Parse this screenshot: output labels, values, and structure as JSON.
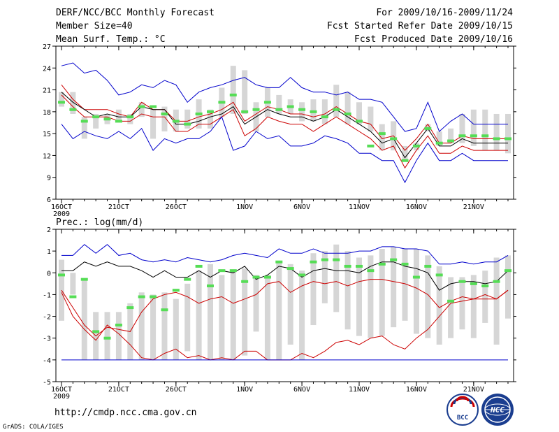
{
  "header": {
    "title_line1": "DERF/NCC/BCC Monthly Forecast",
    "title_line2": "Member Size=40",
    "title_line3": "Mean Surf. Temp.: °C",
    "right_line1": "For 2009/10/16-2009/11/24",
    "right_line2": "Fcst Started Refer Date 2009/10/15",
    "right_line3": "Fcst Produced Date 2009/10/16"
  },
  "footer": {
    "url": "http://cmdp.ncc.cma.gov.cn",
    "credit": "GrADS: COLA/IGES",
    "logo1_text": "BCC",
    "logo2_text": "NCC"
  },
  "colors": {
    "ensemble_range": "#0000cc",
    "ensemble_mean": "#000000",
    "spread": "#cc0000",
    "observation": "#55dd55",
    "box": "#d6d6d6"
  },
  "chart_data": [
    {
      "type": "line",
      "title": "Mean Surf. Temp.: °C",
      "ylim": [
        6,
        27
      ],
      "yticks": [
        6,
        9,
        12,
        15,
        18,
        21,
        24,
        27
      ],
      "x": [
        1,
        2,
        3,
        4,
        5,
        6,
        7,
        8,
        9,
        10,
        11,
        12,
        13,
        14,
        15,
        16,
        17,
        18,
        19,
        20,
        21,
        22,
        23,
        24,
        25,
        26,
        27,
        28,
        29,
        30,
        31,
        32,
        33,
        34,
        35,
        36,
        37,
        38,
        39,
        40
      ],
      "xticks": [
        {
          "x": 1,
          "label": "16OCT",
          "sub": "2009"
        },
        {
          "x": 6,
          "label": "21OCT"
        },
        {
          "x": 11,
          "label": "26OCT"
        },
        {
          "x": 17,
          "label": "1NOV"
        },
        {
          "x": 22,
          "label": "6NOV"
        },
        {
          "x": 27,
          "label": "11NOV"
        },
        {
          "x": 32,
          "label": "16NOV"
        },
        {
          "x": 37,
          "label": "21NOV"
        }
      ],
      "series": [
        {
          "name": "ensemble max",
          "style": "blue",
          "values": [
            24.3,
            24.7,
            23.3,
            23.7,
            22.3,
            20.3,
            20.7,
            21.7,
            21.3,
            22.3,
            21.7,
            19.3,
            20.7,
            21.3,
            21.7,
            22.3,
            22.7,
            21.7,
            21.3,
            21.3,
            22.7,
            21.3,
            20.7,
            20.7,
            20.3,
            20.7,
            19.7,
            19.7,
            19.3,
            17.3,
            15.3,
            15.7,
            19.3,
            15.3,
            16.7,
            17.7,
            16.3,
            16.3,
            16.3,
            16.3
          ]
        },
        {
          "name": "upper spread",
          "style": "red",
          "values": [
            21.7,
            19.7,
            18.3,
            18.3,
            18.3,
            17.7,
            17.3,
            19.3,
            18.3,
            18.3,
            16.7,
            16.7,
            17.3,
            17.7,
            18.3,
            19.3,
            16.7,
            17.7,
            18.7,
            18.3,
            17.7,
            17.7,
            17.3,
            17.7,
            18.7,
            17.7,
            16.7,
            16.3,
            14.3,
            14.7,
            12.7,
            14.3,
            16.3,
            13.7,
            13.7,
            14.7,
            14.3,
            14.3,
            14.3,
            14.3
          ]
        },
        {
          "name": "ensemble mean",
          "style": "black",
          "values": [
            20.7,
            19.3,
            18.3,
            17.3,
            17.7,
            17.3,
            17.3,
            18.7,
            18.3,
            18.3,
            16.3,
            16.3,
            16.7,
            17.3,
            17.7,
            18.7,
            16.3,
            17.3,
            18.3,
            17.7,
            17.3,
            17.3,
            16.7,
            17.3,
            18.3,
            17.3,
            16.3,
            15.3,
            13.7,
            14.3,
            11.7,
            13.7,
            15.7,
            13.3,
            13.3,
            14.3,
            13.7,
            13.7,
            13.7,
            13.7
          ]
        },
        {
          "name": "lower spread",
          "style": "red",
          "values": [
            20.3,
            18.7,
            17.3,
            17.3,
            17.3,
            16.7,
            16.7,
            17.7,
            17.3,
            17.3,
            15.3,
            15.3,
            16.3,
            16.3,
            17.3,
            18.3,
            14.7,
            15.7,
            17.3,
            16.7,
            16.3,
            16.3,
            15.3,
            16.3,
            17.3,
            16.3,
            15.3,
            14.3,
            12.7,
            13.3,
            10.3,
            12.7,
            14.7,
            12.3,
            12.3,
            13.3,
            12.7,
            12.7,
            12.7,
            12.7
          ]
        },
        {
          "name": "ensemble min",
          "style": "blue",
          "values": [
            16.3,
            14.3,
            15.3,
            14.7,
            14.3,
            15.3,
            14.3,
            15.7,
            12.7,
            14.3,
            13.7,
            14.3,
            14.3,
            15.3,
            17.3,
            12.7,
            13.3,
            15.3,
            14.3,
            14.7,
            13.3,
            13.3,
            13.7,
            14.7,
            14.3,
            13.7,
            12.3,
            12.3,
            11.3,
            11.3,
            8.3,
            11.3,
            13.7,
            11.3,
            11.3,
            12.3,
            11.3,
            11.3,
            11.3,
            11.3
          ]
        }
      ],
      "boxes": [
        [
          18.7,
          20.7
        ],
        [
          17.7,
          20.7
        ],
        [
          14.3,
          17.3
        ],
        [
          15.7,
          17.7
        ],
        [
          16.3,
          17.7
        ],
        [
          16.7,
          18.3
        ],
        [
          16.3,
          17.7
        ],
        [
          17.3,
          19.3
        ],
        [
          14.3,
          18.3
        ],
        [
          15.3,
          18.7
        ],
        [
          15.3,
          18.3
        ],
        [
          15.7,
          18.3
        ],
        [
          15.7,
          19.7
        ],
        [
          15.7,
          18.3
        ],
        [
          17.3,
          21.3
        ],
        [
          17.7,
          24.3
        ],
        [
          17.7,
          23.7
        ],
        [
          15.3,
          19.3
        ],
        [
          17.3,
          21.3
        ],
        [
          17.7,
          20.3
        ],
        [
          17.7,
          19.7
        ],
        [
          16.7,
          19.3
        ],
        [
          16.7,
          19.7
        ],
        [
          16.3,
          19.7
        ],
        [
          17.3,
          21.7
        ],
        [
          16.3,
          20.7
        ],
        [
          16.3,
          19.3
        ],
        [
          15.3,
          18.7
        ],
        [
          12.7,
          16.3
        ],
        [
          12.7,
          16.7
        ],
        [
          11.3,
          13.3
        ],
        [
          12.7,
          13.7
        ],
        [
          15.3,
          16.3
        ],
        [
          13.3,
          15.3
        ],
        [
          13.7,
          15.7
        ],
        [
          13.7,
          17.7
        ],
        [
          13.3,
          18.3
        ],
        [
          12.7,
          18.3
        ],
        [
          12.7,
          17.7
        ],
        [
          12.3,
          17.7
        ]
      ],
      "observed": [
        19.3,
        18.3,
        16.7,
        17.3,
        17.0,
        16.7,
        17.3,
        18.7,
        18.7,
        17.7,
        16.7,
        16.3,
        17.7,
        18.0,
        19.3,
        20.3,
        18.0,
        18.3,
        19.3,
        18.3,
        18.7,
        18.3,
        18.0,
        17.3,
        18.3,
        17.7,
        16.7,
        13.3,
        15.0,
        14.3,
        11.3,
        13.3,
        15.7,
        13.7,
        14.0,
        14.7,
        14.7,
        14.7,
        14.3,
        14.3
      ]
    },
    {
      "type": "line",
      "title": "Prec.: log(mm/d)",
      "ylim": [
        -5,
        2
      ],
      "yticks": [
        -5,
        -4,
        -3,
        -2,
        -1,
        0,
        1,
        2
      ],
      "x": [
        1,
        2,
        3,
        4,
        5,
        6,
        7,
        8,
        9,
        10,
        11,
        12,
        13,
        14,
        15,
        16,
        17,
        18,
        19,
        20,
        21,
        22,
        23,
        24,
        25,
        26,
        27,
        28,
        29,
        30,
        31,
        32,
        33,
        34,
        35,
        36,
        37,
        38,
        39,
        40
      ],
      "xticks": [
        {
          "x": 1,
          "label": "16OCT",
          "sub": "2009"
        },
        {
          "x": 6,
          "label": "21OCT"
        },
        {
          "x": 11,
          "label": "26OCT"
        },
        {
          "x": 17,
          "label": "1NOV"
        },
        {
          "x": 22,
          "label": "6NOV"
        },
        {
          "x": 27,
          "label": "11NOV"
        },
        {
          "x": 32,
          "label": "16NOV"
        },
        {
          "x": 37,
          "label": "21NOV"
        }
      ],
      "series": [
        {
          "name": "ensemble max",
          "style": "blue",
          "values": [
            0.8,
            0.8,
            1.3,
            0.9,
            1.3,
            0.8,
            0.9,
            0.6,
            0.5,
            0.6,
            0.5,
            0.7,
            0.6,
            0.5,
            0.6,
            0.8,
            0.9,
            0.8,
            0.7,
            1.1,
            0.9,
            0.9,
            1.1,
            0.9,
            0.9,
            0.9,
            1.0,
            1.0,
            1.2,
            1.2,
            1.1,
            1.1,
            1.0,
            0.4,
            0.4,
            0.5,
            0.4,
            0.5,
            0.5,
            0.8
          ]
        },
        {
          "name": "ensemble mean",
          "style": "black",
          "values": [
            0.1,
            0.1,
            0.5,
            0.3,
            0.5,
            0.3,
            0.3,
            0.1,
            -0.2,
            0.1,
            -0.2,
            -0.2,
            0.1,
            -0.2,
            0.1,
            0.0,
            0.3,
            -0.3,
            -0.1,
            0.3,
            0.2,
            -0.2,
            0.1,
            0.2,
            0.1,
            0.1,
            0.0,
            0.3,
            0.5,
            0.5,
            0.3,
            0.2,
            0.0,
            -0.8,
            -0.5,
            -0.4,
            -0.4,
            -0.5,
            -0.4,
            0.1
          ]
        },
        {
          "name": "lower spread",
          "style": "red",
          "values": [
            -0.9,
            -2.0,
            -2.6,
            -3.1,
            -2.4,
            -2.8,
            -3.3,
            -3.9,
            -4.0,
            -3.7,
            -3.5,
            -3.9,
            -3.8,
            -4.0,
            -3.9,
            -4.0,
            -3.6,
            -3.6,
            -4.0,
            -4.0,
            -4.0,
            -3.7,
            -3.9,
            -3.6,
            -3.2,
            -3.1,
            -3.3,
            -3.0,
            -2.9,
            -3.3,
            -3.5,
            -3.0,
            -2.6,
            -2.0,
            -1.4,
            -1.3,
            -1.2,
            -1.2,
            -1.2,
            -0.8
          ]
        },
        {
          "name": "upper spread",
          "style": "red",
          "values": [
            -0.8,
            -1.6,
            -2.4,
            -2.9,
            -2.5,
            -2.6,
            -2.7,
            -1.8,
            -1.2,
            -1.0,
            -0.9,
            -1.1,
            -1.4,
            -1.2,
            -1.1,
            -1.4,
            -1.2,
            -1.0,
            -0.5,
            -0.4,
            -0.9,
            -0.6,
            -0.4,
            -0.5,
            -0.4,
            -0.6,
            -0.4,
            -0.3,
            -0.3,
            -0.4,
            -0.5,
            -0.7,
            -1.0,
            -1.6,
            -1.3,
            -1.1,
            -1.2,
            -1.0,
            -1.2,
            -0.8
          ]
        },
        {
          "name": "ensemble min",
          "style": "blue",
          "values": [
            -4,
            -4,
            -4,
            -4,
            -4,
            -4,
            -4,
            -4,
            -4,
            -4,
            -4,
            -4,
            -4,
            -4,
            -4,
            -4,
            -4,
            -4,
            -4,
            -4,
            -4,
            -4,
            -4,
            -4,
            -4,
            -4,
            -4,
            -4,
            -4,
            -4,
            -4,
            -4,
            -4,
            -4,
            -4,
            -4,
            -4,
            -4,
            -4,
            -4
          ]
        }
      ],
      "boxes": [
        [
          -2.2,
          0.6
        ],
        [
          -1.0,
          0.0
        ],
        [
          -4.0,
          -0.3
        ],
        [
          -4.0,
          -1.8
        ],
        [
          -4.0,
          -1.8
        ],
        [
          -4.0,
          -1.8
        ],
        [
          -4.0,
          -1.4
        ],
        [
          -4.0,
          -0.9
        ],
        [
          -4.0,
          -1.0
        ],
        [
          -4.0,
          -0.9
        ],
        [
          -4.0,
          -1.2
        ],
        [
          -3.6,
          -0.5
        ],
        [
          -4.0,
          0.1
        ],
        [
          -4.0,
          0.4
        ],
        [
          -4.0,
          -0.1
        ],
        [
          -4.0,
          0.1
        ],
        [
          -3.8,
          0.2
        ],
        [
          -2.7,
          -0.1
        ],
        [
          -4.0,
          -0.1
        ],
        [
          -4.0,
          0.5
        ],
        [
          -3.3,
          0.4
        ],
        [
          -4.0,
          0.1
        ],
        [
          -2.4,
          0.9
        ],
        [
          -1.4,
          1.0
        ],
        [
          -1.8,
          1.3
        ],
        [
          -2.6,
          1.0
        ],
        [
          -2.9,
          0.7
        ],
        [
          -3.0,
          0.8
        ],
        [
          -2.9,
          1.1
        ],
        [
          -2.5,
          1.2
        ],
        [
          -2.2,
          1.1
        ],
        [
          -2.8,
          1.1
        ],
        [
          -3.0,
          0.8
        ],
        [
          -3.3,
          0.3
        ],
        [
          -3.0,
          -0.2
        ],
        [
          -2.6,
          -0.2
        ],
        [
          -3.0,
          -0.1
        ],
        [
          -2.3,
          0.1
        ],
        [
          -3.3,
          0.7
        ],
        [
          -2.1,
          0.8
        ]
      ],
      "observed": [
        -0.1,
        -1.1,
        -0.3,
        -2.7,
        -3.0,
        -2.4,
        -1.6,
        -1.1,
        -1.1,
        -1.7,
        -0.8,
        -0.3,
        0.3,
        -0.6,
        0.1,
        0.1,
        -0.4,
        -0.2,
        -0.2,
        0.5,
        0.2,
        -0.1,
        0.5,
        0.6,
        0.6,
        0.3,
        0.3,
        0.1,
        0.4,
        0.6,
        0.4,
        -0.2,
        0.3,
        -0.1,
        -1.3,
        -0.4,
        -0.5,
        -0.6,
        -0.4,
        0.1
      ]
    }
  ]
}
